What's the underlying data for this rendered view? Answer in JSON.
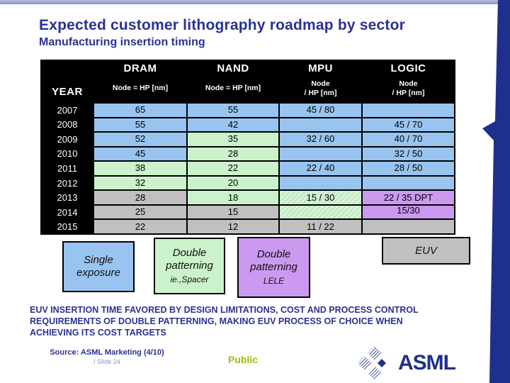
{
  "title": "Expected customer lithography roadmap by sector",
  "subtitle": "Manufacturing insertion timing",
  "table": {
    "year_header": "YEAR",
    "columns": [
      {
        "label": "DRAM",
        "sub1": "Node = HP [nm]",
        "sub2": ""
      },
      {
        "label": "NAND",
        "sub1": "Node = HP [nm]",
        "sub2": ""
      },
      {
        "label": "MPU",
        "sub1": "Node",
        "sub2": "/ HP [nm]"
      },
      {
        "label": "LOGIC",
        "sub1": "Node",
        "sub2": "/ HP [nm]"
      }
    ],
    "rows": [
      {
        "year": "2007",
        "cells": [
          {
            "text": "65",
            "style": "blue"
          },
          {
            "text": "55",
            "style": "blue"
          },
          {
            "text": "45 / 80",
            "style": "blue"
          },
          {
            "text": "",
            "style": "blue"
          }
        ]
      },
      {
        "year": "2008",
        "cells": [
          {
            "text": "55",
            "style": "blue"
          },
          {
            "text": "42",
            "style": "blue"
          },
          {
            "text": "",
            "style": "blue"
          },
          {
            "text": "45 / 70",
            "style": "blue"
          }
        ]
      },
      {
        "year": "2009",
        "cells": [
          {
            "text": "52",
            "style": "blue"
          },
          {
            "text": "35",
            "style": "green"
          },
          {
            "text": "32 / 60",
            "style": "blue"
          },
          {
            "text": "40 / 70",
            "style": "blue"
          }
        ]
      },
      {
        "year": "2010",
        "cells": [
          {
            "text": "45",
            "style": "blue"
          },
          {
            "text": "28",
            "style": "green"
          },
          {
            "text": "",
            "style": "blue"
          },
          {
            "text": "32 / 50",
            "style": "blue"
          }
        ]
      },
      {
        "year": "2011",
        "cells": [
          {
            "text": "38",
            "style": "green"
          },
          {
            "text": "22",
            "style": "green"
          },
          {
            "text": "22 / 40",
            "style": "blue"
          },
          {
            "text": "28 / 50",
            "style": "blue"
          }
        ]
      },
      {
        "year": "2012",
        "cells": [
          {
            "text": "32",
            "style": "green"
          },
          {
            "text": "20",
            "style": "green"
          },
          {
            "text": "",
            "style": "blue"
          },
          {
            "text": "",
            "style": "blue"
          }
        ]
      },
      {
        "year": "2013",
        "cells": [
          {
            "text": "28",
            "style": "gray"
          },
          {
            "text": "18",
            "style": "green"
          },
          {
            "text": "15 / 30",
            "style": "hatch"
          },
          {
            "text": "22 / 35 DPT",
            "style": "purple"
          }
        ]
      },
      {
        "year": "2014",
        "cells": [
          {
            "text": "25",
            "style": "gray"
          },
          {
            "text": "15",
            "style": "gray"
          },
          {
            "text": "",
            "style": "hatch"
          },
          {
            "text": "15/30",
            "style": "purple top"
          }
        ]
      },
      {
        "year": "2015",
        "cells": [
          {
            "text": "22",
            "style": "gray"
          },
          {
            "text": "12",
            "style": "gray"
          },
          {
            "text": "11 / 22",
            "style": "gray"
          },
          {
            "text": "",
            "style": "gray"
          }
        ]
      }
    ]
  },
  "cell_colors": {
    "blue": "#99c4f0",
    "green": "#ccf2cc",
    "gray": "#c0c0c0",
    "purple": "#cc99f0"
  },
  "legend": [
    {
      "label": "Single exposure",
      "sub": "",
      "color": "#99c4f0"
    },
    {
      "label": "Double patterning",
      "sub": "ie.,Spacer",
      "color": "#ccf2cc"
    },
    {
      "label": "Double patterning",
      "sub": "LELE",
      "color": "#cc99f0"
    },
    {
      "label": "EUV",
      "sub": "",
      "color": "#c0c0c0"
    }
  ],
  "footnote": {
    "lines": [
      "EUV INSERTION TIME FAVORED BY DESIGN LIMITATIONS, COST AND PROCESS CONTROL",
      "REQUIREMENTS OF DOUBLE PATTERNING, MAKING EUV PROCESS OF CHOICE WHEN",
      "ACHIEVING ITS COST TARGETS"
    ]
  },
  "footer": {
    "source": "Source: ASML Marketing (4/10)",
    "slide": "/ Slide 24",
    "classification": "Public",
    "logo_text": "ASML"
  },
  "accent_colors": {
    "title_text": "#2b3292",
    "navy_bar": "#1e2f8d",
    "public_green": "#9bbd0f"
  }
}
